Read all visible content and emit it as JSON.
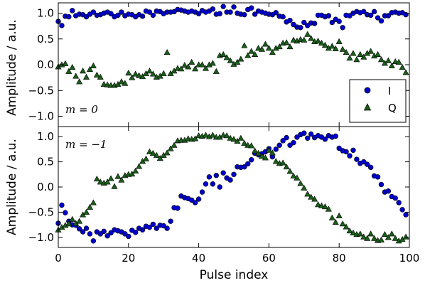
{
  "colors": {
    "I": "#0000cc",
    "Q": "#1a5e1a",
    "marker_edge": "#000000",
    "axes": "#000000",
    "background": "#ffffff"
  },
  "chart_data": [
    {
      "type": "scatter",
      "panel_label": "m = 0",
      "xlabel": "",
      "ylabel": "Amplitude / a.u.",
      "xlim": [
        0,
        100
      ],
      "ylim": [
        -1.2,
        1.2
      ],
      "xticks": [
        0,
        20,
        40,
        60,
        80,
        100
      ],
      "yticks": [
        -1.0,
        -0.5,
        0.0,
        0.5,
        1.0
      ],
      "ytick_labels": [
        "−1.0",
        "−0.5",
        "0.0",
        "0.5",
        "1.0"
      ],
      "legend": {
        "placement": "lower-right",
        "entries": [
          "I",
          "Q"
        ]
      },
      "series": [
        {
          "name": "I",
          "marker": "circle",
          "x": [
            0,
            1,
            2,
            3,
            4,
            5,
            6,
            7,
            8,
            9,
            10,
            11,
            12,
            13,
            14,
            15,
            16,
            17,
            18,
            19,
            20,
            21,
            22,
            23,
            24,
            25,
            26,
            27,
            28,
            29,
            30,
            31,
            32,
            33,
            34,
            35,
            36,
            37,
            38,
            39,
            40,
            41,
            42,
            43,
            44,
            45,
            46,
            47,
            48,
            49,
            50,
            51,
            52,
            53,
            54,
            55,
            56,
            57,
            58,
            59,
            60,
            61,
            62,
            63,
            64,
            65,
            66,
            67,
            68,
            69,
            70,
            71,
            72,
            73,
            74,
            75,
            76,
            77,
            78,
            79,
            80,
            81,
            82,
            83,
            84,
            85,
            86,
            87,
            88,
            89,
            90,
            91,
            92,
            93,
            94,
            95,
            96,
            97,
            98,
            99
          ],
          "y": [
            0.84,
            0.76,
            0.94,
            0.93,
            1.05,
            0.95,
            0.98,
            0.97,
            0.93,
            0.98,
            1.02,
            0.96,
            0.97,
            1.0,
            1.02,
            0.99,
            0.93,
            0.96,
            1.02,
            0.95,
            0.98,
            0.97,
            0.93,
            0.97,
            0.94,
            1.04,
            1.02,
            0.96,
            1.04,
            1.03,
            0.99,
            1.02,
            1.02,
            1.03,
            1.07,
            1.06,
            1.04,
            1.02,
            1.04,
            1.02,
            0.99,
            1.05,
            1.02,
            1.04,
            1.08,
            0.98,
            0.99,
            1.13,
            1.02,
            1.02,
            1.12,
            1.0,
            0.98,
            0.97,
            1.07,
            1.1,
            0.98,
            1.04,
            1.02,
            1.0,
            0.98,
            0.97,
            1.01,
            0.94,
            0.93,
            0.83,
            0.86,
            0.78,
            0.73,
            0.72,
            0.82,
            0.76,
            0.81,
            0.8,
            0.96,
            0.96,
            0.93,
            0.95,
            0.82,
            0.88,
            0.84,
            0.72,
            0.96,
            0.95,
            1.0,
            1.03,
            1.01,
            1.03,
            0.97,
            0.96,
            1.03,
            0.91,
            0.85,
            0.95,
            0.95,
            1.01,
            1.02,
            1.0,
            1.01,
            0.97
          ]
        },
        {
          "name": "Q",
          "marker": "triangle",
          "x": [
            0,
            1,
            2,
            3,
            4,
            5,
            6,
            7,
            8,
            9,
            10,
            11,
            12,
            13,
            14,
            15,
            16,
            17,
            18,
            19,
            20,
            21,
            22,
            23,
            24,
            25,
            26,
            27,
            28,
            29,
            30,
            31,
            32,
            33,
            34,
            35,
            36,
            37,
            38,
            39,
            40,
            41,
            42,
            43,
            44,
            45,
            46,
            47,
            48,
            49,
            50,
            51,
            52,
            53,
            54,
            55,
            56,
            57,
            58,
            59,
            60,
            61,
            62,
            63,
            64,
            65,
            66,
            67,
            68,
            69,
            70,
            71,
            72,
            73,
            74,
            75,
            76,
            77,
            78,
            79,
            80,
            81,
            82,
            83,
            84,
            85,
            86,
            87,
            88,
            89,
            90,
            91,
            92,
            93,
            94,
            95,
            96,
            97,
            98,
            99
          ],
          "y": [
            -0.04,
            0.0,
            0.02,
            -0.13,
            -0.05,
            -0.22,
            -0.33,
            -0.12,
            -0.24,
            -0.09,
            -0.02,
            -0.2,
            -0.24,
            -0.38,
            -0.39,
            -0.4,
            -0.4,
            -0.38,
            -0.33,
            -0.36,
            -0.16,
            -0.25,
            -0.18,
            -0.21,
            -0.23,
            -0.17,
            -0.12,
            -0.18,
            -0.24,
            -0.22,
            -0.17,
            0.24,
            -0.17,
            -0.12,
            -0.07,
            -0.08,
            -0.01,
            -0.04,
            0.05,
            -0.08,
            0.0,
            0.0,
            -0.07,
            0.0,
            0.03,
            -0.13,
            0.18,
            0.2,
            0.14,
            0.08,
            0.01,
            0.05,
            0.11,
            0.37,
            0.18,
            0.26,
            0.2,
            0.32,
            0.3,
            0.4,
            0.32,
            0.24,
            0.32,
            0.35,
            0.42,
            0.43,
            0.35,
            0.48,
            0.46,
            0.49,
            0.48,
            0.59,
            0.51,
            0.45,
            0.46,
            0.42,
            0.38,
            0.32,
            0.36,
            0.31,
            0.45,
            0.3,
            0.24,
            0.13,
            0.22,
            0.1,
            0.2,
            0.15,
            0.22,
            0.26,
            0.17,
            0.2,
            0.1,
            0.03,
            0.08,
            -0.02,
            0.06,
            0.05,
            -0.05,
            -0.15
          ]
        }
      ]
    },
    {
      "type": "scatter",
      "panel_label": "m = −1",
      "xlabel": "Pulse index",
      "ylabel": "Amplitude / a.u.",
      "xlim": [
        0,
        100
      ],
      "ylim": [
        -1.2,
        1.2
      ],
      "xticks": [
        0,
        20,
        40,
        60,
        80,
        100
      ],
      "xtick_labels": [
        "0",
        "20",
        "40",
        "60",
        "80",
        "100"
      ],
      "yticks": [
        -1.0,
        -0.5,
        0.0,
        0.5,
        1.0
      ],
      "ytick_labels": [
        "−1.0",
        "−0.5",
        "0.0",
        "0.5",
        "1.0"
      ],
      "series": [
        {
          "name": "I",
          "marker": "circle",
          "x": [
            0,
            1,
            2,
            3,
            4,
            5,
            6,
            7,
            8,
            9,
            10,
            11,
            12,
            13,
            14,
            15,
            16,
            17,
            18,
            19,
            20,
            21,
            22,
            23,
            24,
            25,
            26,
            27,
            28,
            29,
            30,
            31,
            32,
            33,
            34,
            35,
            36,
            37,
            38,
            39,
            40,
            41,
            42,
            43,
            44,
            45,
            46,
            47,
            48,
            49,
            50,
            51,
            52,
            53,
            54,
            55,
            56,
            57,
            58,
            59,
            60,
            61,
            62,
            63,
            64,
            65,
            66,
            67,
            68,
            69,
            70,
            71,
            72,
            73,
            74,
            75,
            76,
            77,
            78,
            79,
            80,
            81,
            82,
            83,
            84,
            85,
            86,
            87,
            88,
            89,
            90,
            91,
            92,
            93,
            94,
            95,
            96,
            97,
            98,
            99
          ],
          "y": [
            -0.72,
            -0.36,
            -0.51,
            -0.68,
            -0.75,
            -0.76,
            -0.83,
            -0.89,
            -0.82,
            -0.93,
            -1.07,
            -0.89,
            -0.93,
            -0.88,
            -0.97,
            -0.91,
            -0.85,
            -0.87,
            -0.89,
            -0.93,
            -0.98,
            -0.86,
            -0.9,
            -0.82,
            -0.85,
            -0.78,
            -0.8,
            -0.74,
            -0.82,
            -0.76,
            -0.77,
            -0.82,
            -0.68,
            -0.41,
            -0.42,
            -0.18,
            -0.21,
            -0.23,
            -0.26,
            -0.31,
            -0.24,
            -0.1,
            0.06,
            0.2,
            0.06,
            0.23,
            0.0,
            0.28,
            0.18,
            0.14,
            0.25,
            0.4,
            0.39,
            0.4,
            0.46,
            0.54,
            0.67,
            0.64,
            0.66,
            0.7,
            0.76,
            0.6,
            0.75,
            0.83,
            0.92,
            0.98,
            0.83,
            0.88,
            0.99,
            1.04,
            1.07,
            0.97,
            1.05,
            0.98,
            1.02,
            0.99,
            0.95,
            1.02,
            0.99,
            1.01,
            0.77,
            0.72,
            0.7,
            0.62,
            0.73,
            0.55,
            0.47,
            0.5,
            0.45,
            0.39,
            0.22,
            0.2,
            0.05,
            -0.1,
            -0.08,
            -0.19,
            -0.22,
            -0.31,
            -0.45,
            -0.55
          ]
        },
        {
          "name": "Q",
          "marker": "triangle",
          "x": [
            0,
            1,
            2,
            3,
            4,
            5,
            6,
            7,
            8,
            9,
            10,
            11,
            12,
            13,
            14,
            15,
            16,
            17,
            18,
            19,
            20,
            21,
            22,
            23,
            24,
            25,
            26,
            27,
            28,
            29,
            30,
            31,
            32,
            33,
            34,
            35,
            36,
            37,
            38,
            39,
            40,
            41,
            42,
            43,
            44,
            45,
            46,
            47,
            48,
            49,
            50,
            51,
            52,
            53,
            54,
            55,
            56,
            57,
            58,
            59,
            60,
            61,
            62,
            63,
            64,
            65,
            66,
            67,
            68,
            69,
            70,
            71,
            72,
            73,
            74,
            75,
            76,
            77,
            78,
            79,
            80,
            81,
            82,
            83,
            84,
            85,
            86,
            87,
            88,
            89,
            90,
            91,
            92,
            93,
            94,
            95,
            96,
            97,
            98,
            99
          ],
          "y": [
            -0.85,
            -0.8,
            -0.76,
            -0.73,
            -0.64,
            -0.72,
            -0.68,
            -0.55,
            -0.5,
            -0.4,
            -0.31,
            0.16,
            0.1,
            0.08,
            0.1,
            0.17,
            0.01,
            0.21,
            0.14,
            0.23,
            0.25,
            0.26,
            0.32,
            0.41,
            0.51,
            0.56,
            0.7,
            0.67,
            0.63,
            0.57,
            0.63,
            0.68,
            0.76,
            0.83,
            0.92,
            0.93,
            0.93,
            0.96,
            0.95,
            0.96,
            1.02,
            1.01,
            1.03,
            1.0,
            1.03,
            0.99,
            0.99,
            1.03,
            1.02,
            0.97,
            0.95,
            0.91,
            0.97,
            0.87,
            0.83,
            0.82,
            0.72,
            0.67,
            0.61,
            0.58,
            0.73,
            0.68,
            0.51,
            0.47,
            0.48,
            0.4,
            0.31,
            0.22,
            0.18,
            0.07,
            -0.02,
            -0.14,
            -0.2,
            -0.24,
            -0.35,
            -0.37,
            -0.39,
            -0.44,
            -0.61,
            -0.7,
            -0.57,
            -0.73,
            -0.79,
            -0.87,
            -0.91,
            -0.94,
            -0.93,
            -0.99,
            -1.02,
            -0.93,
            -1.02,
            -1.06,
            -1.05,
            -0.94,
            -1.0,
            -0.93,
            -1.02,
            -1.07,
            -1.04,
            -0.99
          ]
        }
      ]
    }
  ]
}
